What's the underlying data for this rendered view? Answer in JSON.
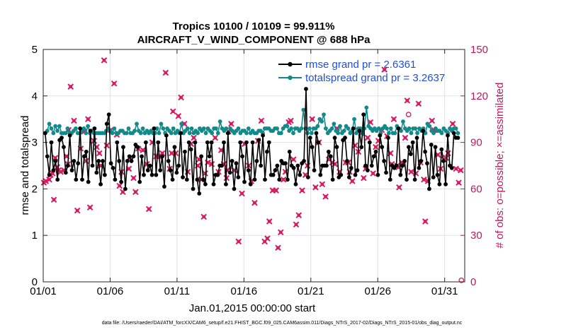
{
  "chart_data": {
    "type": "line",
    "title": "Tropics 10100 / 10109 = 99.911%",
    "subtitle": "AIRCRAFT_V_WIND_COMPONENT @ 688 hPa",
    "xlabel": "Jan.01,2015 00:00:00 start",
    "ylabel": "rmse and totalspread",
    "y2label": "# of obs: o=possible; ×=assimilated",
    "xlim": [
      0,
      31.5
    ],
    "ylim": [
      0,
      5
    ],
    "y2lim": [
      0,
      150
    ],
    "x_ticks": [
      0,
      5,
      10,
      15,
      20,
      25,
      30
    ],
    "x_tick_labels": [
      "01/01",
      "01/06",
      "01/11",
      "01/16",
      "01/21",
      "01/26",
      "01/31"
    ],
    "y_ticks": [
      "0",
      "1",
      "2",
      "3",
      "4",
      "5"
    ],
    "y2_ticks": [
      "0",
      "30",
      "60",
      "90",
      "120",
      "150"
    ],
    "grid": true,
    "legend_position": "top-right",
    "colors": {
      "rmse": "#000000",
      "spread": "#138a8a",
      "obs": "#d81b60",
      "legend_text": "#1f4fe0",
      "right_axis": "#C2185B"
    },
    "series": [
      {
        "name": "rmse grand pr = 2.6361",
        "axis": "left",
        "marker": "circle",
        "values": [
          3.2,
          2.7,
          2.3,
          3.0,
          2.4,
          2.6,
          2.2,
          3.05,
          3.1,
          2.9,
          2.35,
          2.5,
          3.15,
          2.4,
          2.6,
          2.2,
          2.55,
          3.3,
          2.2,
          2.7,
          2.8,
          2.15,
          3.25,
          2.5,
          3.3,
          2.35,
          2.6,
          2.1,
          2.6,
          2.3,
          3.4,
          3.6,
          2.55,
          2.45,
          2.2,
          3.0,
          2.6,
          2.15,
          2.9,
          2.0,
          2.6,
          2.7,
          2.6,
          2.7,
          2.95,
          2.9,
          2.15,
          2.7,
          2.3,
          3.0,
          2.4,
          2.5,
          2.3,
          3.3,
          2.3,
          3.0,
          2.4,
          2.7,
          2.05,
          3.15,
          2.6,
          2.4,
          2.2,
          2.9,
          2.35,
          2.5,
          3.2,
          2.25,
          2.8,
          2.2,
          3.0,
          2.85,
          2.0,
          3.0,
          2.2,
          1.9,
          2.7,
          2.2,
          2.1,
          3.0,
          2.7,
          3.0,
          2.1,
          2.3,
          2.3,
          2.5,
          2.5,
          3.0,
          2.1,
          3.2,
          2.35,
          2.6,
          2.0,
          2.55,
          2.25,
          3.0,
          2.7,
          2.15,
          3.0,
          2.4,
          2.1,
          3.0,
          2.2,
          2.6,
          3.05,
          2.5,
          3.15,
          2.2,
          2.8,
          3.0,
          2.3,
          2.3,
          2.4,
          2.5,
          2.2,
          2.6,
          2.55,
          2.55,
          2.2,
          2.8,
          2.5,
          2.45,
          2.1,
          2.5,
          2.3,
          2.55,
          2.6,
          4.15,
          2.25,
          3.1,
          2.9,
          2.4,
          3.2,
          3.0,
          2.3,
          2.5,
          2.5,
          2.5,
          2.8,
          2.7,
          2.2,
          3.1,
          2.9,
          2.25,
          2.3,
          3.05,
          3.1,
          2.6,
          2.25,
          2.45,
          3.3,
          2.3,
          2.4,
          3.25,
          2.9,
          3.6,
          2.5,
          2.4,
          3.0,
          2.5,
          2.7,
          2.8,
          2.3,
          3.15,
          2.9,
          2.6,
          2.35,
          3.1,
          2.2,
          2.5,
          2.45,
          2.5,
          3.3,
          2.3,
          2.5,
          2.6,
          2.2,
          2.9,
          2.75,
          3.0,
          2.2,
          3.1,
          2.45,
          2.6,
          3.25,
          2.8,
          2.55,
          2.0,
          2.95,
          2.25,
          2.9,
          2.3,
          2.1,
          2.85,
          2.6,
          2.1,
          3.15,
          2.5,
          2.45,
          3.2,
          3.1,
          3.1
        ]
      },
      {
        "name": "totalspread grand pr = 3.2637",
        "axis": "left",
        "marker": "circle",
        "values": [
          3.2,
          3.25,
          3.4,
          3.3,
          3.2,
          3.35,
          3.25,
          3.35,
          3.2,
          3.2,
          3.2,
          3.3,
          3.2,
          3.2,
          3.25,
          3.3,
          3.2,
          3.2,
          3.25,
          3.3,
          3.2,
          3.35,
          3.2,
          3.25,
          3.2,
          3.2,
          3.2,
          3.2,
          3.2,
          3.2,
          3.25,
          3.3,
          3.25,
          3.2,
          3.3,
          3.2,
          3.2,
          3.25,
          3.25,
          3.2,
          3.2,
          3.3,
          3.2,
          3.2,
          3.25,
          3.4,
          3.25,
          3.2,
          3.3,
          3.2,
          3.25,
          3.2,
          3.25,
          3.2,
          3.2,
          3.3,
          3.2,
          3.4,
          3.3,
          3.2,
          3.3,
          3.25,
          3.2,
          3.3,
          3.2,
          3.25,
          3.2,
          3.4,
          3.2,
          3.25,
          3.3,
          3.2,
          3.3,
          3.2,
          3.25,
          3.2,
          3.3,
          3.25,
          3.3,
          3.2,
          3.3,
          3.25,
          3.2,
          3.3,
          3.3,
          3.2,
          3.45,
          3.3,
          3.25,
          3.3,
          3.2,
          3.3,
          3.25,
          3.2,
          3.25,
          3.3,
          3.2,
          3.25,
          3.25,
          3.2,
          3.3,
          3.2,
          3.25,
          3.2,
          3.2,
          3.25,
          3.25,
          3.2,
          3.3,
          3.3,
          3.3,
          3.25,
          3.25,
          3.3,
          3.3,
          3.2,
          3.2,
          3.3,
          3.35,
          3.35,
          3.25,
          3.3,
          3.2,
          3.3,
          3.3,
          3.25,
          3.3,
          3.7,
          3.3,
          3.2,
          3.3,
          3.2,
          3.3,
          3.3,
          3.35,
          3.5,
          3.45,
          3.6,
          3.3,
          3.2,
          3.25,
          3.3,
          3.4,
          3.25,
          3.2,
          3.35,
          3.2,
          3.25,
          3.35,
          3.3,
          3.2,
          3.25,
          3.5,
          3.2,
          3.3,
          3.3,
          3.2,
          3.3,
          3.75,
          3.35,
          3.3,
          3.25,
          3.3,
          3.25,
          3.3,
          3.2,
          3.3,
          3.35,
          3.3,
          3.2,
          3.3,
          3.2,
          3.2,
          3.35,
          3.3,
          3.25,
          3.45,
          3.3,
          3.25,
          3.3,
          3.2,
          3.3,
          3.3,
          3.2,
          3.3,
          3.25,
          3.3,
          3.2,
          3.4,
          3.35,
          3.25,
          3.2,
          3.3,
          3.25,
          3.25,
          3.2,
          3.3,
          3.25,
          3.2,
          3.3,
          3.25,
          3.3,
          3.3,
          3.2
        ]
      },
      {
        "name": "obs assimilated",
        "axis": "right",
        "marker": "x-dot",
        "points": [
          [
            0.05,
            64
          ],
          [
            0.2,
            65
          ],
          [
            0.45,
            66
          ],
          [
            0.55,
            69
          ],
          [
            0.7,
            70
          ],
          [
            0.8,
            53
          ],
          [
            0.9,
            80
          ],
          [
            1.05,
            74
          ],
          [
            1.15,
            72
          ],
          [
            1.3,
            71
          ],
          [
            1.55,
            72
          ],
          [
            1.75,
            81
          ],
          [
            1.85,
            76
          ],
          [
            1.9,
            98
          ],
          [
            2.05,
            126
          ],
          [
            2.3,
            104
          ],
          [
            2.55,
            46
          ],
          [
            2.8,
            86
          ],
          [
            3.05,
            97
          ],
          [
            3.2,
            78
          ],
          [
            3.35,
            105
          ],
          [
            3.5,
            48
          ],
          [
            3.8,
            91
          ],
          [
            4.0,
            87
          ],
          [
            4.2,
            83
          ],
          [
            4.3,
            75
          ],
          [
            4.55,
            143
          ],
          [
            4.75,
            88
          ],
          [
            5.05,
            98
          ],
          [
            5.3,
            128
          ],
          [
            5.5,
            95
          ],
          [
            5.7,
            62
          ],
          [
            5.85,
            71
          ],
          [
            5.95,
            58
          ],
          [
            6.4,
            73
          ],
          [
            6.5,
            80
          ],
          [
            6.75,
            67
          ],
          [
            6.9,
            58
          ],
          [
            7.1,
            86
          ],
          [
            7.45,
            85
          ],
          [
            7.75,
            76
          ],
          [
            7.9,
            47
          ],
          [
            8.15,
            90
          ],
          [
            8.45,
            81
          ],
          [
            8.65,
            81
          ],
          [
            8.9,
            83
          ],
          [
            9.15,
            135
          ],
          [
            9.45,
            73
          ],
          [
            9.6,
            83
          ],
          [
            9.7,
            110
          ],
          [
            9.9,
            83
          ],
          [
            10.1,
            107
          ],
          [
            10.3,
            119
          ],
          [
            10.55,
            102
          ],
          [
            10.8,
            71
          ],
          [
            11.05,
            89
          ],
          [
            11.25,
            93
          ],
          [
            11.55,
            75
          ],
          [
            11.65,
            79
          ],
          [
            11.8,
            66
          ],
          [
            12.0,
            42
          ],
          [
            12.1,
            70
          ],
          [
            12.3,
            77
          ],
          [
            12.6,
            76
          ],
          [
            12.85,
            93
          ],
          [
            13.1,
            71
          ],
          [
            13.3,
            85
          ],
          [
            13.5,
            76
          ],
          [
            13.7,
            67
          ],
          [
            13.75,
            72
          ],
          [
            13.85,
            97
          ],
          [
            14.05,
            102
          ],
          [
            14.3,
            72
          ],
          [
            14.6,
            26
          ],
          [
            14.85,
            57
          ],
          [
            15.05,
            89
          ],
          [
            15.35,
            75
          ],
          [
            15.55,
            65
          ],
          [
            15.8,
            51
          ],
          [
            16.05,
            91
          ],
          [
            16.3,
            104
          ],
          [
            16.55,
            26
          ],
          [
            16.75,
            28
          ],
          [
            16.9,
            39
          ],
          [
            17.15,
            59
          ],
          [
            17.4,
            59
          ],
          [
            17.55,
            22
          ],
          [
            17.75,
            32
          ],
          [
            17.95,
            66
          ],
          [
            18.1,
            71
          ],
          [
            18.35,
            103
          ],
          [
            18.5,
            104
          ],
          [
            18.7,
            79
          ],
          [
            18.9,
            37
          ],
          [
            19.1,
            43
          ],
          [
            19.35,
            59
          ],
          [
            19.6,
            69
          ],
          [
            19.75,
            75
          ],
          [
            20.1,
            105
          ],
          [
            20.35,
            61
          ],
          [
            20.6,
            90
          ],
          [
            20.85,
            63
          ],
          [
            21.1,
            55
          ],
          [
            21.35,
            79
          ],
          [
            21.6,
            77
          ],
          [
            21.8,
            76
          ],
          [
            21.95,
            99
          ],
          [
            22.15,
            71
          ],
          [
            22.6,
            77
          ],
          [
            22.8,
            77
          ],
          [
            22.9,
            71
          ],
          [
            23.1,
            65
          ],
          [
            23.3,
            88
          ],
          [
            23.55,
            84
          ],
          [
            23.75,
            96
          ],
          [
            23.95,
            67
          ],
          [
            24.1,
            73
          ],
          [
            24.25,
            93
          ],
          [
            24.45,
            103
          ],
          [
            24.65,
            70
          ],
          [
            24.85,
            87
          ],
          [
            25.05,
            91
          ],
          [
            25.3,
            98
          ],
          [
            25.5,
            137
          ],
          [
            25.7,
            94
          ],
          [
            25.95,
            83
          ],
          [
            26.05,
            76
          ],
          [
            26.2,
            105
          ],
          [
            26.45,
            75
          ],
          [
            26.55,
            74
          ],
          [
            26.6,
            61
          ],
          [
            26.8,
            77
          ],
          [
            27.05,
            93
          ],
          [
            27.2,
            117
          ],
          [
            27.5,
            71
          ],
          [
            27.85,
            70
          ],
          [
            28.05,
            115
          ],
          [
            28.2,
            77
          ],
          [
            28.45,
            66
          ],
          [
            28.55,
            39
          ],
          [
            28.75,
            65
          ],
          [
            29.05,
            104
          ],
          [
            29.2,
            98
          ],
          [
            29.5,
            82
          ],
          [
            29.7,
            73
          ],
          [
            29.95,
            79
          ],
          [
            30.1,
            80
          ],
          [
            30.25,
            83
          ],
          [
            30.6,
            102
          ],
          [
            30.85,
            73
          ],
          [
            31.05,
            64
          ],
          [
            31.2,
            72
          ]
        ]
      },
      {
        "name": "obs possible",
        "axis": "right",
        "marker": "circle-open",
        "points": [
          [
            27.3,
            108
          ],
          [
            31.25,
            1
          ]
        ]
      }
    ],
    "legend": [
      {
        "label": "rmse grand pr = 2.6361",
        "series": 0
      },
      {
        "label": "totalspread grand pr = 3.2637",
        "series": 1
      }
    ]
  },
  "footer": {
    "text": "data file: /Users/raeder/DAI/ATM_forcXX/CAM6_setup/f.e21.FHIST_BGC.f09_025.CAM6assim.011/Diags_NTrS_2017-02/Diags_NTrS_2015-01/obs_diag_output.nc"
  }
}
